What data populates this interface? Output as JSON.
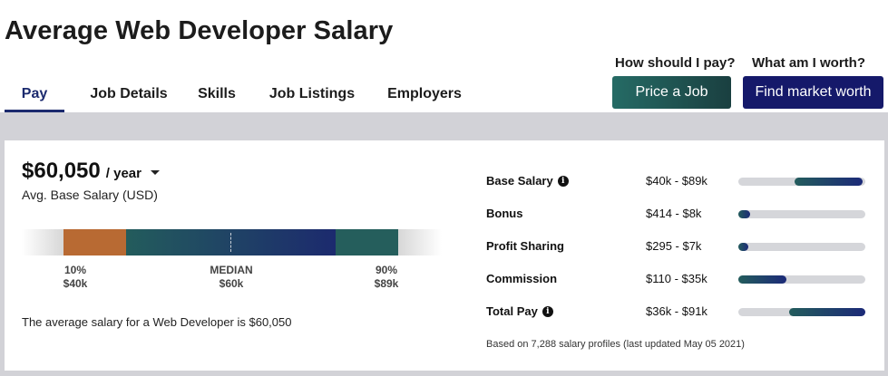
{
  "page": {
    "title": "Average Web Developer Salary"
  },
  "tabs": [
    {
      "label": "Pay",
      "active": true
    },
    {
      "label": "Job Details",
      "active": false
    },
    {
      "label": "Skills",
      "active": false
    },
    {
      "label": "Job Listings",
      "active": false
    },
    {
      "label": "Employers",
      "active": false
    }
  ],
  "cta": {
    "price": {
      "question": "How should I pay?",
      "button": "Price a Job"
    },
    "market": {
      "question": "What am I worth?",
      "button": "Find market worth"
    }
  },
  "salary": {
    "value": "$60,050",
    "period": "/ year",
    "subtitle": "Avg. Base Salary (USD)",
    "percentiles": [
      {
        "label": "10%",
        "value": "$40k"
      },
      {
        "label": "MEDIAN",
        "value": "$60k"
      },
      {
        "label": "90%",
        "value": "$89k"
      }
    ],
    "summary": "The average salary for a Web Developer is $60,050"
  },
  "pay_breakdown": [
    {
      "label": "Base Salary",
      "info": true,
      "range": "$40k - $89k",
      "fill_start": 0.44,
      "fill_end": 0.98
    },
    {
      "label": "Bonus",
      "info": false,
      "range": "$414 - $8k",
      "fill_start": 0.0,
      "fill_end": 0.09
    },
    {
      "label": "Profit Sharing",
      "info": false,
      "range": "$295 - $7k",
      "fill_start": 0.0,
      "fill_end": 0.08
    },
    {
      "label": "Commission",
      "info": false,
      "range": "$110 - $35k",
      "fill_start": 0.0,
      "fill_end": 0.38
    },
    {
      "label": "Total Pay",
      "info": true,
      "range": "$36k - $91k",
      "fill_start": 0.4,
      "fill_end": 1.0
    }
  ],
  "footnote": "Based on 7,288 salary profiles (last updated May 05 2021)",
  "icons": {
    "info": "info-icon",
    "dropdown": "caret-down-icon"
  },
  "colors": {
    "primary_navy": "#15196a",
    "teal": "#256b65",
    "orange": "#b86a33",
    "band_gray": "#d2d2d7"
  }
}
